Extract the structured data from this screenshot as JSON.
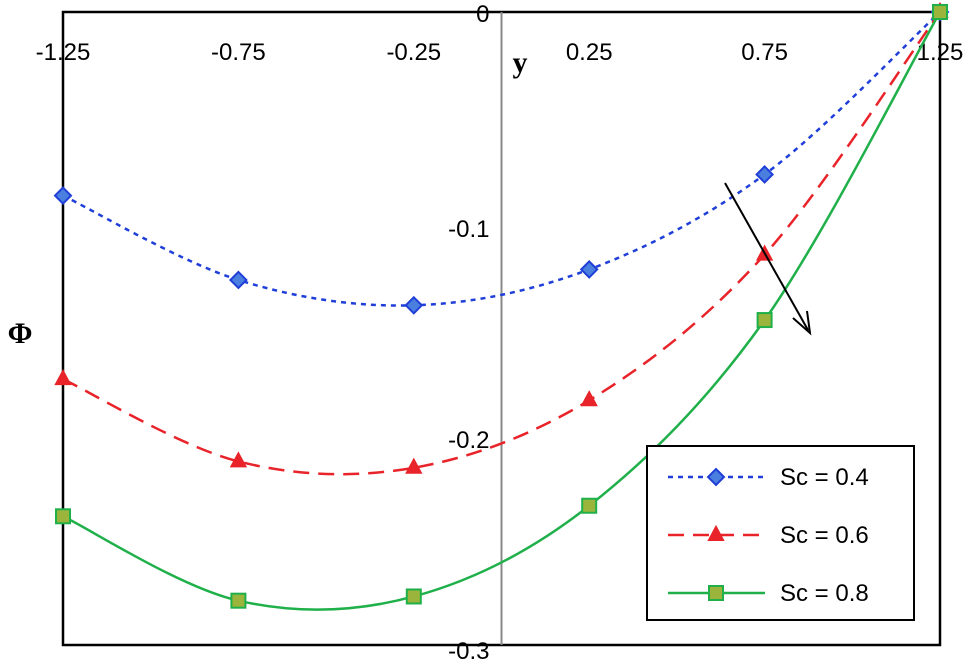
{
  "chart_data": {
    "type": "line",
    "title": "",
    "xlabel": "y",
    "ylabel": "Φ",
    "xlim": [
      -1.25,
      1.25
    ],
    "ylim": [
      -0.3,
      0
    ],
    "x_ticks": [
      "-1.25",
      "-0.75",
      "-0.25",
      "0.25",
      "0.75",
      "1.25"
    ],
    "y_ticks": [
      "0",
      "-0.1",
      "-0.2",
      "-0.3"
    ],
    "legend_position": "bottom-right",
    "grid": false,
    "x": [
      -1.25,
      -0.75,
      -0.25,
      0.25,
      0.75,
      1.25
    ],
    "series": [
      {
        "name": "Sc = 0.4",
        "color": "#1f3fd8",
        "line": "dotted",
        "marker": "diamond",
        "marker_fill": "#4a7fe0",
        "values": [
          -0.087,
          -0.127,
          -0.139,
          -0.122,
          -0.077,
          0.0
        ]
      },
      {
        "name": "Sc = 0.6",
        "color": "#e8242a",
        "line": "dashed",
        "marker": "triangle",
        "marker_fill": "#e8242a",
        "values": [
          -0.174,
          -0.213,
          -0.216,
          -0.184,
          -0.115,
          0.0
        ]
      },
      {
        "name": "Sc = 0.8",
        "color": "#1fb04a",
        "line": "solid",
        "marker": "square",
        "marker_fill": "#9bb53c",
        "values": [
          -0.239,
          -0.279,
          -0.277,
          -0.234,
          -0.146,
          0.0
        ]
      }
    ],
    "annotation": "arrow indicating increasing Sc"
  }
}
